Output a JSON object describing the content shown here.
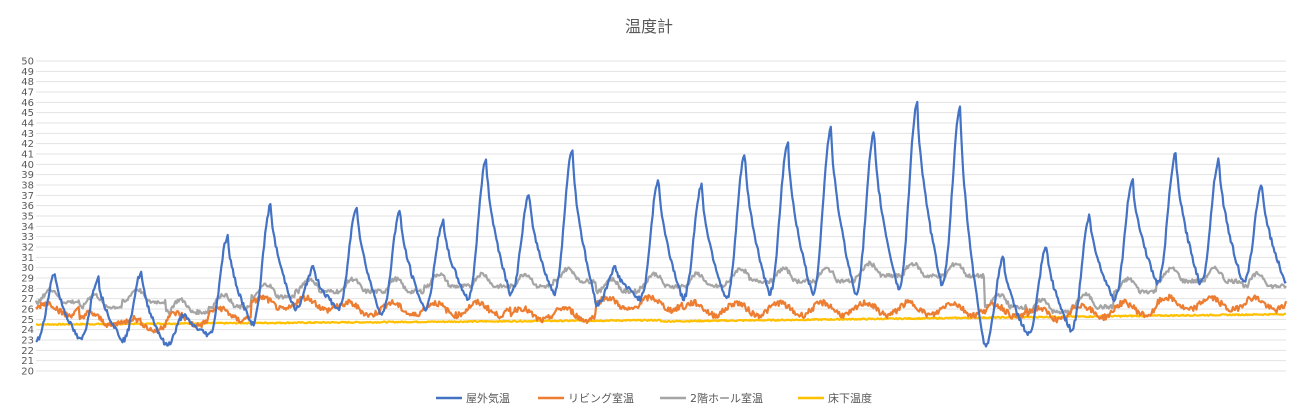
{
  "chart_data": {
    "type": "line",
    "title": "温度計",
    "xlabel": "",
    "ylabel": "",
    "ylim": [
      20,
      50
    ],
    "yticks": [
      20,
      21,
      22,
      23,
      24,
      25,
      26,
      27,
      28,
      29,
      30,
      31,
      32,
      33,
      34,
      35,
      36,
      37,
      38,
      39,
      40,
      41,
      42,
      43,
      44,
      45,
      46,
      47,
      48,
      49,
      50
    ],
    "grid": true,
    "legend_position": "bottom",
    "x_count": 31,
    "series": [
      {
        "name": "屋外気温",
        "color": "#4472C4",
        "peaks": [
          29.5,
          29.0,
          29.5,
          25.5,
          33.0,
          36.0,
          30.0,
          36.0,
          35.5,
          34.5,
          40.5,
          37.0,
          41.5,
          30.0,
          38.5,
          38.0,
          41.0,
          42.0,
          43.5,
          43.0,
          46.0,
          45.5,
          31.0,
          32.0,
          35.0,
          38.5,
          41.0,
          40.5,
          38.0
        ],
        "lows": [
          23.0,
          23.0,
          23.0,
          22.5,
          23.5,
          24.5,
          26.0,
          26.0,
          25.5,
          26.0,
          27.0,
          27.5,
          27.5,
          26.5,
          27.0,
          27.0,
          27.0,
          27.5,
          27.5,
          27.5,
          28.0,
          28.5,
          22.5,
          23.5,
          24.0,
          27.0,
          28.5,
          28.5,
          28.5
        ]
      },
      {
        "name": "リビング室温",
        "color": "#ED7D31",
        "base": [
          26.0,
          25.0,
          24.5,
          25.0,
          25.5,
          26.5,
          26.5,
          26.0,
          26.0,
          26.0,
          26.0,
          25.5,
          25.5,
          26.5,
          26.5,
          26.0,
          26.0,
          26.0,
          26.0,
          26.0,
          26.0,
          26.0,
          25.8,
          25.5,
          25.8,
          26.0,
          26.5,
          26.5,
          26.5
        ]
      },
      {
        "name": "2階ホール室温",
        "color": "#A5A5A5",
        "base": [
          27.5,
          27.0,
          27.5,
          26.5,
          27.0,
          28.0,
          28.5,
          28.5,
          28.5,
          29.0,
          29.0,
          29.0,
          29.5,
          28.5,
          29.0,
          29.0,
          29.5,
          29.5,
          29.5,
          30.0,
          30.0,
          30.0,
          27.0,
          26.5,
          27.0,
          28.5,
          29.5,
          29.5,
          29.0
        ]
      },
      {
        "name": "床下温度",
        "color": "#FFC000",
        "start": 24.5,
        "mid": 24.8,
        "end": 25.5
      }
    ]
  }
}
